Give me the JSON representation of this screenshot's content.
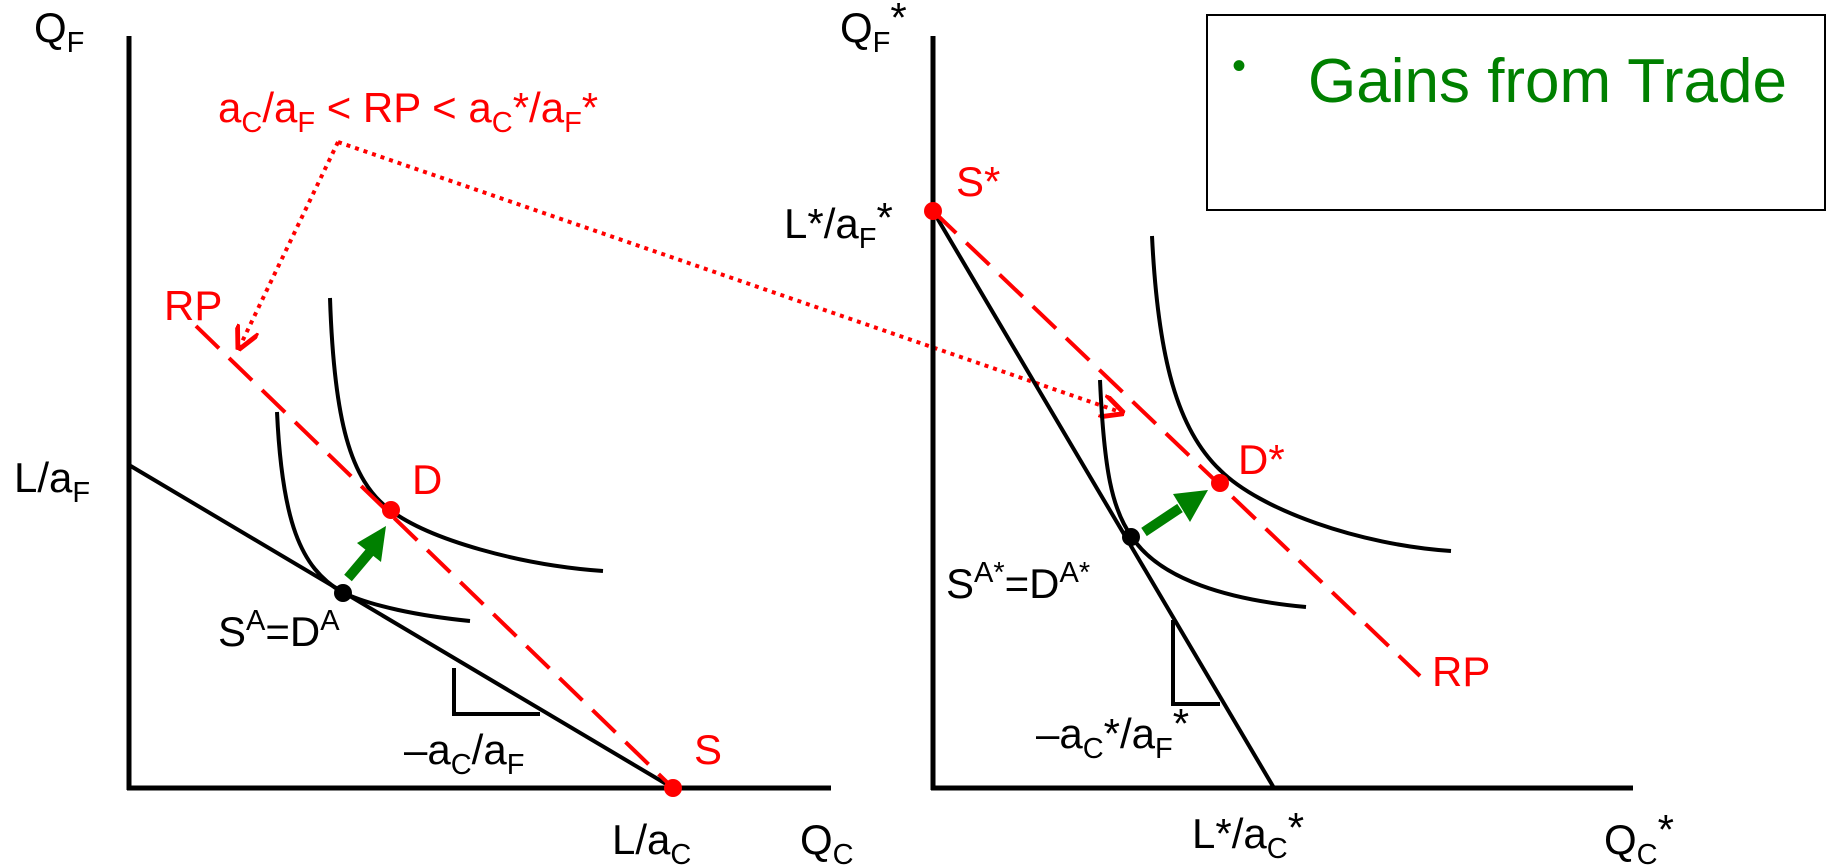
{
  "colors": {
    "axis": "#000000",
    "accent": "#ff0000",
    "gain": "#008000"
  },
  "legend": {
    "bullet": "•",
    "text": "Gains from Trade"
  },
  "home": {
    "y_axis": {
      "main": "Q",
      "sub": "F"
    },
    "x_axis": {
      "main": "Q",
      "sub": "C"
    },
    "y_intercept": {
      "main": "L/a",
      "sub": "F"
    },
    "x_intercept": {
      "main": "L/a",
      "sub": "C"
    },
    "inequality": {
      "p1": "a",
      "s1": "C",
      "p2": "/a",
      "s2": "F",
      "p3": " < RP < a",
      "s3": "C",
      "p4": "*/a",
      "s4": "F",
      "p5": "*"
    },
    "rp_label": "RP",
    "d_label": "D",
    "s_label": "S",
    "autarky": {
      "p1": "S",
      "s1": "A",
      "p2": "=D",
      "s2": "A"
    },
    "slope": {
      "p1": "–a",
      "s1": "C",
      "p2": "/a",
      "s2": "F"
    }
  },
  "foreign": {
    "y_axis": {
      "main": "Q",
      "sub": "F",
      "star": "*"
    },
    "x_axis": {
      "main": "Q",
      "sub": "C",
      "star": "*"
    },
    "y_intercept": {
      "main": "L*/a",
      "sub": "F",
      "star": "*"
    },
    "x_intercept": {
      "main": "L*/a",
      "sub": "C",
      "star": "*"
    },
    "s_label": "S*",
    "d_label": "D*",
    "rp_label": "RP",
    "autarky": {
      "text": "S",
      "s1": "A*",
      "p2": "=D",
      "s2": "A*"
    },
    "slope": {
      "p1": "–a",
      "s1": "C",
      "p2": "*/a",
      "s2": "F",
      "p3": "*"
    }
  }
}
